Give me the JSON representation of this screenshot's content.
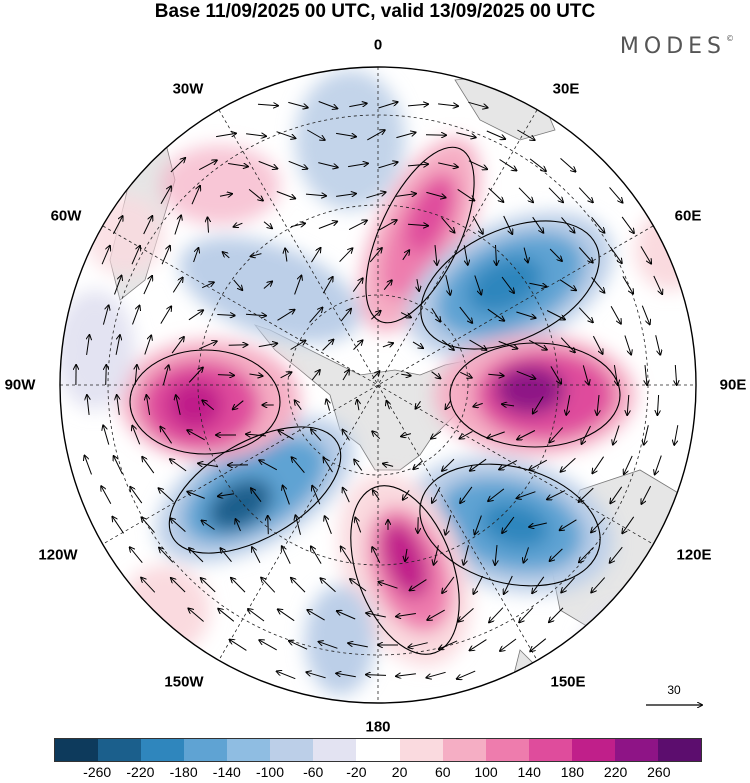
{
  "title": "Base 11/09/2025 00 UTC, valid 13/09/2025 00 UTC",
  "logo": "MODES",
  "logo_mark": "©",
  "lon_labels": {
    "top": "0",
    "top_left": "30W",
    "top_right": "30E",
    "upper_left": "60W",
    "upper_right": "60E",
    "left": "90W",
    "right": "90E",
    "lower_left": "120W",
    "lower_right": "120E",
    "bottom_left": "150W",
    "bottom_right": "150E",
    "bottom": "180"
  },
  "reference_vector": "30",
  "colorbar": {
    "colors": [
      "#0d3a5c",
      "#1b5f8c",
      "#2f86bd",
      "#5fa3d3",
      "#8fbde2",
      "#bccfe8",
      "#e3e3f2",
      "#ffffff",
      "#fadadf",
      "#f5aec4",
      "#ee7cad",
      "#df4c9c",
      "#c01f8a",
      "#8e1486",
      "#5c0d6e"
    ],
    "labels": [
      "-260",
      "-220",
      "-180",
      "-140",
      "-100",
      "-60",
      "-20",
      "20",
      "60",
      "100",
      "140",
      "180",
      "220",
      "260"
    ]
  },
  "chart_data": {
    "type": "heatmap",
    "title": "Base 11/09/2025 00 UTC, valid 13/09/2025 00 UTC",
    "projection": "south polar stereographic",
    "field": "geopotential height anomaly with wind vectors",
    "levels": [
      -260,
      -220,
      -180,
      -140,
      -100,
      -60,
      -20,
      20,
      60,
      100,
      140,
      180,
      220,
      260
    ],
    "reference_vector": 30,
    "anomaly_centers": [
      {
        "name": "positive 20E",
        "lon": 20,
        "value": 180
      },
      {
        "name": "negative 55E",
        "lon": 55,
        "value": -160
      },
      {
        "name": "positive 90E",
        "lon": 90,
        "value": 240
      },
      {
        "name": "negative 125E",
        "lon": 125,
        "value": -180
      },
      {
        "name": "positive 165E",
        "lon": 165,
        "value": 220
      },
      {
        "name": "negative 140W",
        "lon": -140,
        "value": -200
      },
      {
        "name": "positive 95W",
        "lon": -95,
        "value": 230
      },
      {
        "name": "negative 55W",
        "lon": -55,
        "value": -100
      },
      {
        "name": "positive 30W",
        "lon": -30,
        "value": 60
      },
      {
        "name": "negative 10W",
        "lon": -10,
        "value": -70
      }
    ]
  }
}
